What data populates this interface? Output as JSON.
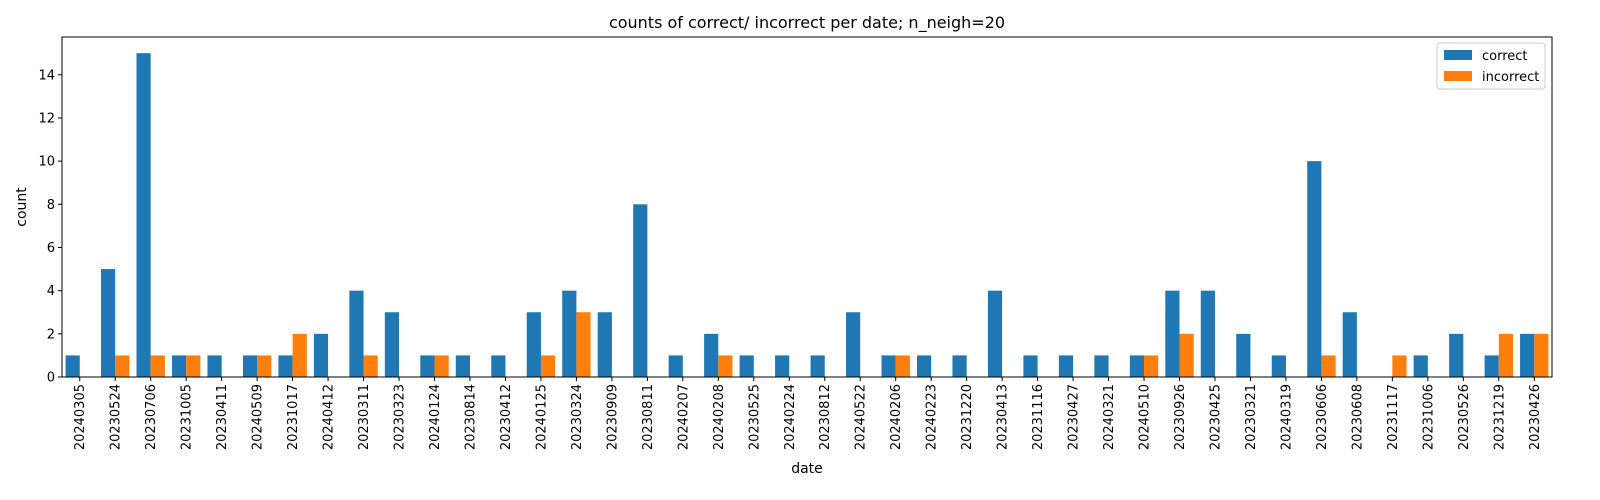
{
  "chart_data": {
    "type": "bar",
    "title": "counts of correct/ incorrect per date; n_neigh=20",
    "xlabel": "date",
    "ylabel": "count",
    "ylim": [
      0,
      15.75
    ],
    "yticks": [
      0,
      2,
      4,
      6,
      8,
      10,
      12,
      14
    ],
    "grid": false,
    "legend_position": "top-right",
    "categories": [
      "20240305",
      "20230524",
      "20230706",
      "20231005",
      "20230411",
      "20240509",
      "20231017",
      "20240412",
      "20230311",
      "20230323",
      "20240124",
      "20230814",
      "20230412",
      "20240125",
      "20230324",
      "20230909",
      "20230811",
      "20240207",
      "20240208",
      "20230525",
      "20240224",
      "20230812",
      "20240522",
      "20240206",
      "20240223",
      "20231220",
      "20230413",
      "20231116",
      "20230427",
      "20240321",
      "20240510",
      "20230926",
      "20230425",
      "20230321",
      "20240319",
      "20230606",
      "20230608",
      "20231117",
      "20231006",
      "20230526",
      "20231219",
      "20230426"
    ],
    "series": [
      {
        "name": "correct",
        "color": "#1f77b4",
        "values": [
          1,
          5,
          15,
          1,
          1,
          1,
          1,
          2,
          4,
          3,
          1,
          1,
          1,
          3,
          4,
          3,
          8,
          1,
          2,
          1,
          1,
          1,
          3,
          1,
          1,
          1,
          4,
          1,
          1,
          1,
          1,
          4,
          4,
          2,
          1,
          10,
          3,
          0,
          1,
          2,
          1,
          2
        ]
      },
      {
        "name": "incorrect",
        "color": "#ff7f0e",
        "values": [
          0,
          1,
          1,
          1,
          0,
          1,
          2,
          0,
          1,
          0,
          1,
          0,
          0,
          1,
          3,
          0,
          0,
          0,
          1,
          0,
          0,
          0,
          0,
          1,
          0,
          0,
          0,
          0,
          0,
          0,
          1,
          2,
          0,
          0,
          0,
          1,
          0,
          1,
          0,
          0,
          2,
          2
        ]
      }
    ]
  }
}
